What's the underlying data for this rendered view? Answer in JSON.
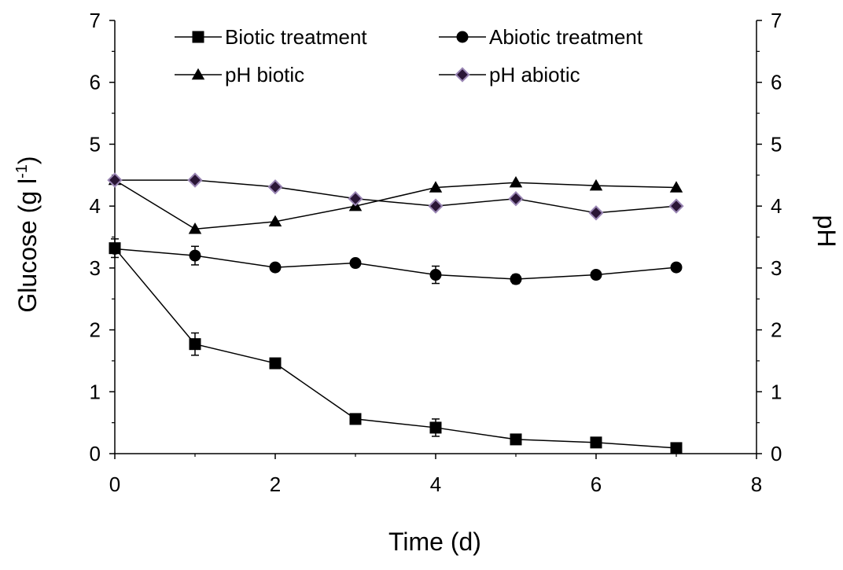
{
  "chart_data": {
    "type": "line",
    "title": "",
    "xlabel": "Time (d)",
    "ylabel": "Glucose (g l",
    "ylabel_sup": "-1",
    "ylabel_end": ")",
    "y2label": "pH",
    "xlim": [
      0,
      8
    ],
    "ylim": [
      0,
      7
    ],
    "y2lim": [
      0,
      7
    ],
    "x_ticks": [
      "0",
      "2",
      "4",
      "6",
      "8"
    ],
    "y_ticks": [
      "0",
      "1",
      "2",
      "3",
      "4",
      "5",
      "6",
      "7"
    ],
    "y2_ticks": [
      "0",
      "1",
      "2",
      "3",
      "4",
      "5",
      "6",
      "7"
    ],
    "grid": false,
    "legend_position": "top",
    "series": [
      {
        "name": "Biotic treatment",
        "marker": "square",
        "axis": "left",
        "x": [
          0,
          1,
          2,
          3,
          4,
          5,
          6,
          7
        ],
        "y": [
          3.32,
          1.77,
          1.46,
          0.56,
          0.42,
          0.23,
          0.18,
          0.09
        ],
        "error": [
          0.15,
          0.18,
          0.04,
          0.06,
          0.14,
          0.05,
          0.03,
          0.02
        ]
      },
      {
        "name": "Abiotic treatment",
        "marker": "circle",
        "axis": "left",
        "x": [
          0,
          1,
          2,
          3,
          4,
          5,
          6,
          7
        ],
        "y": [
          3.31,
          3.2,
          3.01,
          3.08,
          2.89,
          2.82,
          2.89,
          3.01
        ],
        "error": [
          0.04,
          0.15,
          0.05,
          0.06,
          0.14,
          0.07,
          0.04,
          0.04
        ]
      },
      {
        "name": "pH biotic",
        "marker": "triangle",
        "axis": "right",
        "x": [
          0,
          1,
          2,
          3,
          4,
          5,
          6,
          7
        ],
        "y": [
          4.42,
          3.63,
          3.75,
          4.0,
          4.3,
          4.38,
          4.33,
          4.3
        ]
      },
      {
        "name": "pH abiotic",
        "marker": "diamond",
        "axis": "right",
        "x": [
          0,
          1,
          2,
          3,
          4,
          5,
          6,
          7
        ],
        "y": [
          4.42,
          4.42,
          4.31,
          4.12,
          4.0,
          4.12,
          3.89,
          4.0
        ]
      }
    ],
    "colors": {
      "line": "#000000",
      "marker_fill": "#000000",
      "diamond_fill": "#2a1636",
      "diamond_edge": "#9a86b4"
    }
  }
}
